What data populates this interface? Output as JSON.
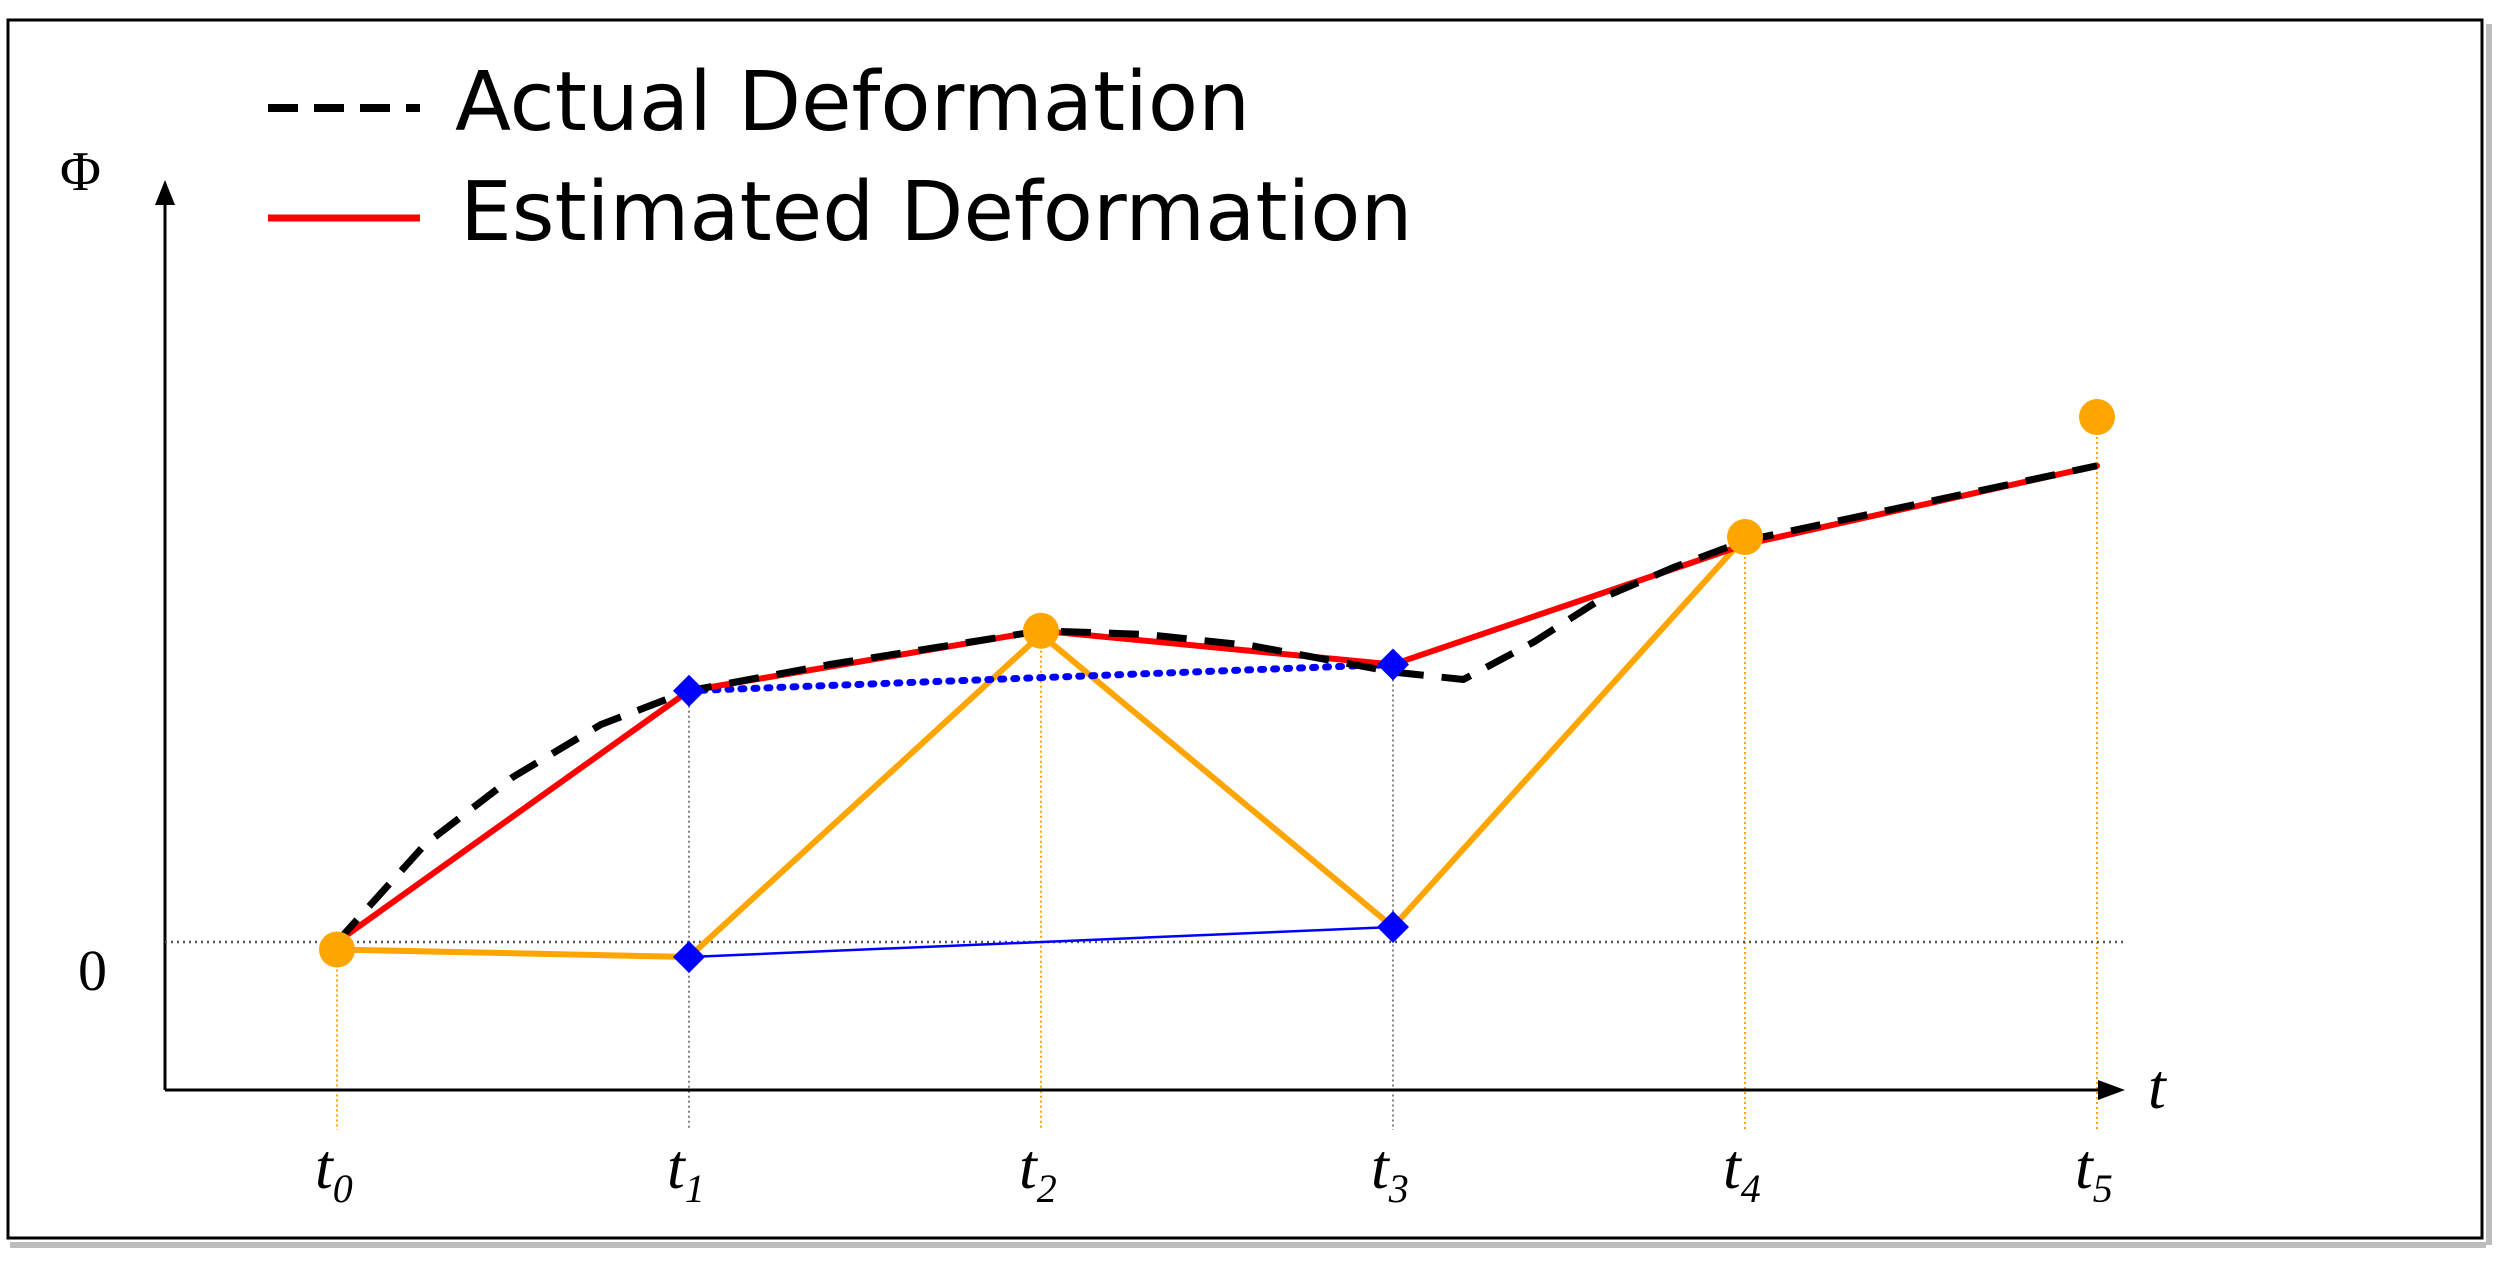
{
  "chart_data": {
    "type": "line",
    "ylabel": "Φ",
    "xlabel": "t",
    "zero_label": "0",
    "ticks": [
      {
        "main": "t",
        "sub": "0"
      },
      {
        "main": "t",
        "sub": "1"
      },
      {
        "main": "t",
        "sub": "2"
      },
      {
        "main": "t",
        "sub": "3"
      },
      {
        "main": "t",
        "sub": "4"
      },
      {
        "main": "t",
        "sub": "5"
      }
    ],
    "x": [
      0,
      1,
      2,
      3,
      4,
      5
    ],
    "xlim": [
      -0.45,
      5.8
    ],
    "ylim": [
      -0.2,
      1.15
    ],
    "legend": {
      "placement": "top-left",
      "entries": [
        {
          "label": "Actual Deformation",
          "style": "dashed",
          "color": "#000000"
        },
        {
          "label": "Estimated Deformation",
          "style": "solid",
          "color": "#ff0000"
        }
      ]
    },
    "series": [
      {
        "key": "actual",
        "style": "dashed",
        "color": "#000000",
        "x": [
          0,
          0.25,
          0.5,
          0.75,
          1,
          1.4,
          1.8,
          2,
          2.3,
          2.6,
          3,
          3.2,
          3.4,
          3.6,
          3.8,
          4,
          4.5,
          5
        ],
        "y": [
          0,
          0.13,
          0.22,
          0.29,
          0.335,
          0.37,
          0.4,
          0.415,
          0.41,
          0.395,
          0.36,
          0.35,
          0.4,
          0.46,
          0.5,
          0.535,
          0.585,
          0.635
        ]
      },
      {
        "key": "estimated",
        "style": "solid",
        "color": "#ff0000",
        "x": [
          0,
          1,
          2,
          3,
          4,
          5
        ],
        "y": [
          0,
          0.335,
          0.415,
          0.37,
          0.53,
          0.635
        ]
      },
      {
        "key": "zigzag",
        "style": "solid",
        "color": "#ffa500",
        "x": [
          0,
          1,
          2,
          3,
          4
        ],
        "y": [
          -0.01,
          -0.02,
          0.41,
          0.02,
          0.54
        ]
      },
      {
        "key": "upper-interp",
        "style": "dotted",
        "color": "#0000ff",
        "x": [
          1,
          3
        ],
        "y": [
          0.335,
          0.37
        ]
      },
      {
        "key": "lower-interp",
        "style": "thin",
        "color": "#0000ff",
        "x": [
          1,
          3
        ],
        "y": [
          -0.02,
          0.02
        ]
      }
    ],
    "markers": [
      {
        "shape": "circle",
        "color": "#ffa500",
        "x": 0,
        "y": -0.01
      },
      {
        "shape": "diamond",
        "color": "#0000ff",
        "x": 1,
        "y": 0.335
      },
      {
        "shape": "diamond",
        "color": "#0000ff",
        "x": 1,
        "y": -0.02
      },
      {
        "shape": "circle",
        "color": "#ffa500",
        "x": 2,
        "y": 0.415
      },
      {
        "shape": "diamond",
        "color": "#0000ff",
        "x": 3,
        "y": 0.37
      },
      {
        "shape": "diamond",
        "color": "#0000ff",
        "x": 3,
        "y": 0.02
      },
      {
        "shape": "circle",
        "color": "#ffa500",
        "x": 4,
        "y": 0.54
      },
      {
        "shape": "circle",
        "color": "#ffa500",
        "x": 5,
        "y": 0.7
      }
    ],
    "guides": [
      {
        "x": 0,
        "color": "#ffa500"
      },
      {
        "x": 1,
        "color": "#808080"
      },
      {
        "x": 2,
        "color": "#ffa500"
      },
      {
        "x": 3,
        "color": "#808080"
      },
      {
        "x": 4,
        "color": "#ffa500"
      },
      {
        "x": 5,
        "color": "#ffa500"
      }
    ],
    "grid": false
  }
}
